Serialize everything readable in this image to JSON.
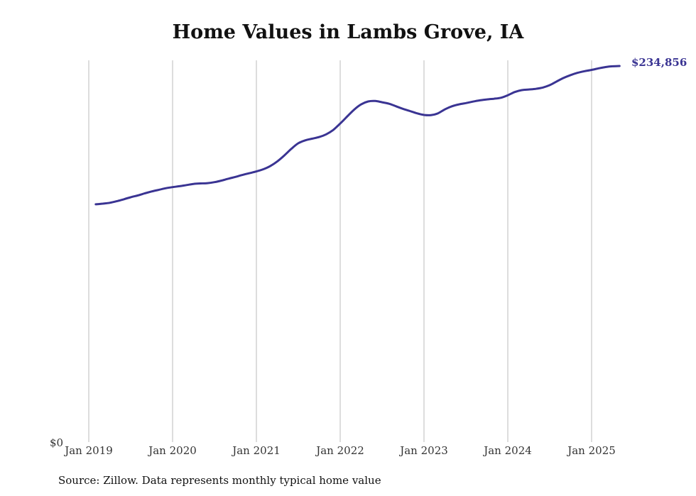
{
  "title": "Home Values in Lambs Grove, IA",
  "source": "Source: Zillow. Data represents monthly typical home value",
  "colors": {
    "line": "#3a3493",
    "grid": "#bbbbbb",
    "text": "#111111"
  },
  "chart_data": {
    "type": "line",
    "title": "Home Values in Lambs Grove, IA",
    "xlabel": "",
    "ylabel": "",
    "ylim": [
      0,
      234856
    ],
    "y_tick_labels": [
      "$0"
    ],
    "x_tick_labels": [
      "Jan 2019",
      "Jan 2020",
      "Jan 2021",
      "Jan 2022",
      "Jan 2023",
      "Jan 2024",
      "Jan 2025"
    ],
    "x_tick_dates": [
      "2019-01",
      "2020-01",
      "2021-01",
      "2022-01",
      "2023-01",
      "2024-01",
      "2025-01"
    ],
    "end_label": "$234,856",
    "grid": "vertical at year ticks",
    "legend": "none",
    "series": [
      {
        "x": [
          "2019-02",
          "2019-03",
          "2019-04",
          "2019-05",
          "2019-06",
          "2019-07",
          "2019-08",
          "2019-09",
          "2019-10",
          "2019-11",
          "2019-12",
          "2020-01",
          "2020-02",
          "2020-03",
          "2020-04",
          "2020-05",
          "2020-06",
          "2020-07",
          "2020-08",
          "2020-09",
          "2020-10",
          "2020-11",
          "2020-12",
          "2021-01",
          "2021-02",
          "2021-03",
          "2021-04",
          "2021-05",
          "2021-06",
          "2021-07",
          "2021-08",
          "2021-09",
          "2021-10",
          "2021-11",
          "2021-12",
          "2022-01",
          "2022-02",
          "2022-03",
          "2022-04",
          "2022-05",
          "2022-06",
          "2022-07",
          "2022-08",
          "2022-09",
          "2022-10",
          "2022-11",
          "2022-12",
          "2023-01",
          "2023-02",
          "2023-03",
          "2023-04",
          "2023-05",
          "2023-06",
          "2023-07",
          "2023-08",
          "2023-09",
          "2023-10",
          "2023-11",
          "2023-12",
          "2024-01",
          "2024-02",
          "2024-03",
          "2024-04",
          "2024-05",
          "2024-06",
          "2024-07",
          "2024-08",
          "2024-09",
          "2024-10",
          "2024-11",
          "2024-12",
          "2025-01",
          "2025-02",
          "2025-03",
          "2025-04",
          "2025-05"
        ],
        "values": [
          148500,
          148900,
          149400,
          150400,
          151600,
          152900,
          154000,
          155300,
          156500,
          157500,
          158500,
          159200,
          159800,
          160500,
          161200,
          161500,
          161700,
          162300,
          163300,
          164500,
          165600,
          166800,
          167900,
          169000,
          170400,
          172400,
          175300,
          179000,
          183100,
          186600,
          188400,
          189500,
          190500,
          192200,
          194900,
          198900,
          203300,
          207600,
          210900,
          212700,
          213000,
          212200,
          211300,
          209700,
          208100,
          206700,
          205300,
          204300,
          204200,
          205300,
          207800,
          209700,
          210900,
          211700,
          212600,
          213400,
          214000,
          214400,
          215000,
          216600,
          218600,
          219800,
          220200,
          220600,
          221400,
          222900,
          225200,
          227400,
          229200,
          230600,
          231600,
          232400,
          233400,
          234200,
          234700,
          234856
        ]
      }
    ]
  }
}
